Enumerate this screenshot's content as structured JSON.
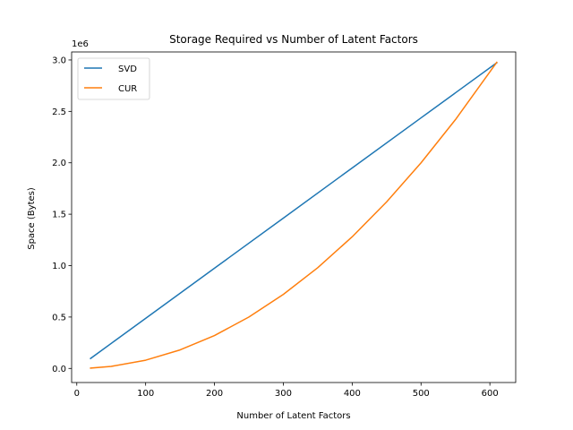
{
  "chart_data": {
    "type": "line",
    "title": "Storage Required vs Number of Latent Factors",
    "xlabel": "Number of Latent Factors",
    "ylabel": "Space (Bytes)",
    "y_offset_label": "1e6",
    "xlim": [
      -7.5,
      637.5
    ],
    "ylim": [
      -0.137,
      3.078
    ],
    "xticks": [
      0,
      100,
      200,
      300,
      400,
      500,
      600
    ],
    "yticks": [
      0.0,
      0.5,
      1.0,
      1.5,
      2.0,
      2.5,
      3.0
    ],
    "ytick_labels": [
      "0.0",
      "0.5",
      "1.0",
      "1.5",
      "2.0",
      "2.5",
      "3.0"
    ],
    "legend_position": "top-left",
    "grid": false,
    "series": [
      {
        "name": "SVD",
        "color": "#1f77b4",
        "x": [
          20,
          100,
          200,
          300,
          400,
          500,
          610
        ],
        "y": [
          0.097,
          0.487,
          0.975,
          1.462,
          1.95,
          2.437,
          2.973
        ]
      },
      {
        "name": "CUR",
        "color": "#ff7f0e",
        "x": [
          20,
          50,
          100,
          150,
          200,
          250,
          300,
          350,
          400,
          450,
          500,
          550,
          610
        ],
        "y": [
          0.003,
          0.02,
          0.08,
          0.18,
          0.32,
          0.5,
          0.72,
          0.98,
          1.28,
          1.62,
          2.0,
          2.42,
          2.977
        ]
      }
    ]
  }
}
